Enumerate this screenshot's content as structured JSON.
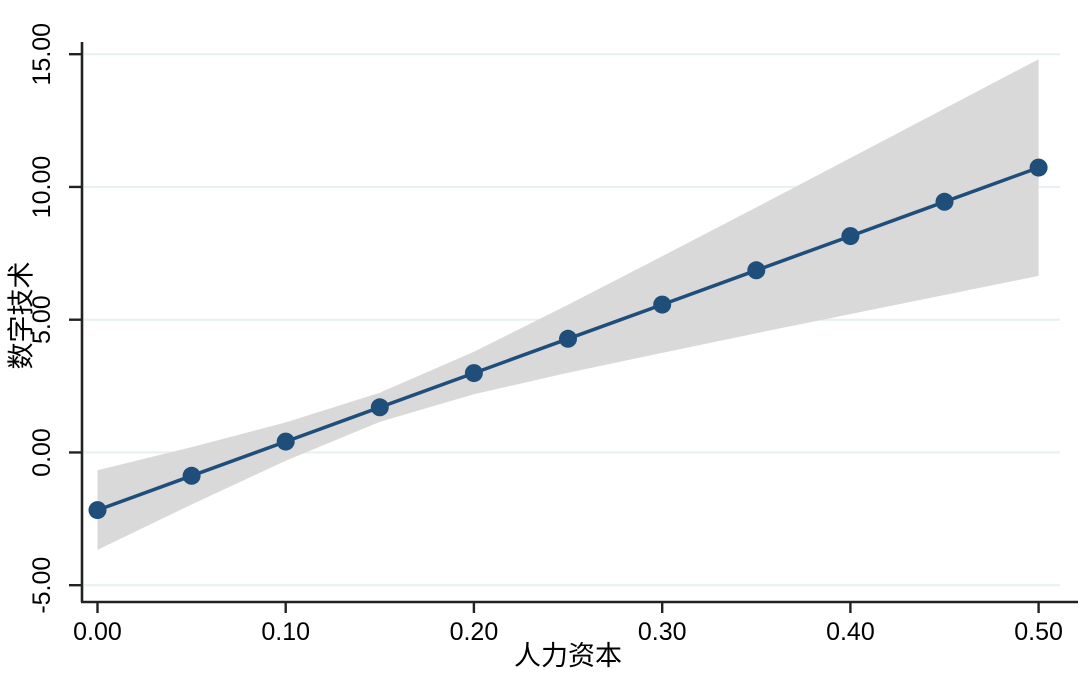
{
  "chart_data": {
    "type": "line",
    "subtype": "marginal-effects-with-confidence-band",
    "title": "",
    "xlabel": "人力资本",
    "ylabel": "数字技术",
    "x": [
      0.0,
      0.05,
      0.1,
      0.15,
      0.2,
      0.25,
      0.3,
      0.35,
      0.4,
      0.45,
      0.5
    ],
    "values": [
      -2.17,
      -0.88,
      0.41,
      1.7,
      2.99,
      4.28,
      5.57,
      6.86,
      8.15,
      9.44,
      10.73
    ],
    "ci_upper": [
      -0.67,
      0.2,
      1.13,
      2.25,
      3.79,
      5.56,
      7.39,
      9.23,
      11.09,
      12.95,
      14.81
    ],
    "ci_lower": [
      -3.67,
      -1.96,
      -0.31,
      1.15,
      2.19,
      3.0,
      3.75,
      4.49,
      5.21,
      5.93,
      6.65
    ],
    "xlim": [
      0,
      0.5
    ],
    "ylim": [
      -5,
      15
    ],
    "xticks": {
      "values": [
        0,
        0.1,
        0.2,
        0.3,
        0.4,
        0.5
      ],
      "labels": [
        "0.00",
        "0.10",
        "0.20",
        "0.30",
        "0.40",
        "0.50"
      ]
    },
    "yticks": {
      "values": [
        -5,
        0,
        5,
        10,
        15
      ],
      "labels": [
        "-5.00",
        "0.00",
        "5.00",
        "10.00",
        "15.00"
      ]
    },
    "y_tick_label_rotation": 90,
    "grid": "horizontal",
    "legend": "none",
    "marker": "circle",
    "colors": {
      "line": "#1e4e79",
      "marker": "#1e4e79",
      "ci_band": "#d9d9d9",
      "gridline": "#e7f0f3",
      "axis": "#222222",
      "text": "#000000",
      "background": "#ffffff"
    }
  }
}
